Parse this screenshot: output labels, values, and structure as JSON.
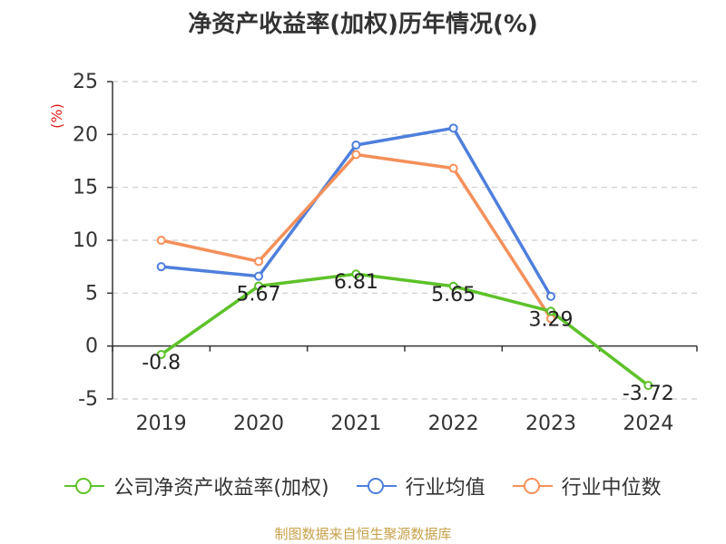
{
  "chart_data": {
    "type": "line",
    "title": "净资产收益率(加权)历年情况(%)",
    "ylabel": "(%)",
    "xlabel": "",
    "categories": [
      "2019",
      "2020",
      "2021",
      "2022",
      "2023",
      "2024"
    ],
    "ylim": [
      -5,
      25
    ],
    "yticks": [
      -5,
      0,
      5,
      10,
      15,
      20,
      25
    ],
    "grid": true,
    "legend_position": "bottom",
    "series": [
      {
        "name": "公司净资产收益率(加权)",
        "color": "#5dc22a",
        "values": [
          -0.8,
          5.67,
          6.81,
          5.65,
          3.29,
          -3.72
        ],
        "labels": [
          "-0.8",
          "5.67",
          "6.81",
          "5.65",
          "3.29",
          "-3.72"
        ]
      },
      {
        "name": "行业均值",
        "color": "#4f7fdc",
        "values": [
          7.5,
          6.6,
          19.0,
          20.6,
          4.7,
          null
        ]
      },
      {
        "name": "行业中位数",
        "color": "#f4905a",
        "values": [
          10.0,
          8.0,
          18.1,
          16.8,
          2.6,
          null
        ]
      }
    ]
  },
  "source_note": "制图数据来自恒生聚源数据库"
}
